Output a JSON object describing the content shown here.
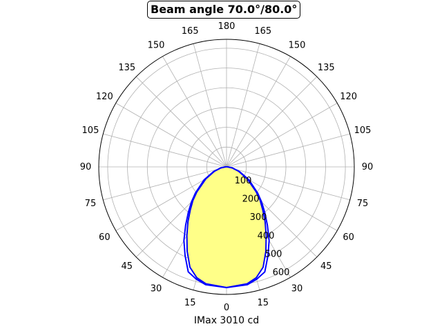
{
  "chart_data": {
    "type": "polar",
    "title": "Beam angle 70.0°/80.0°",
    "xlabel": "IMax 3010 cd",
    "angle_tick_labels": [
      "0",
      "15",
      "30",
      "45",
      "60",
      "75",
      "90",
      "105",
      "120",
      "135",
      "150",
      "165",
      "180"
    ],
    "radial_tick_labels": [
      "100",
      "200",
      "300",
      "400",
      "500",
      "600"
    ],
    "radial_ticks": [
      100,
      200,
      300,
      400,
      500,
      600
    ],
    "rlim": [
      0,
      645
    ],
    "grid": true,
    "angles_deg": [
      0,
      10,
      15,
      20,
      25,
      30,
      35,
      40,
      45,
      50,
      60,
      70,
      80,
      90
    ],
    "series": [
      {
        "values": [
          610,
          605,
          588,
          565,
          495,
          430,
          360,
          300,
          250,
          205,
          130,
          70,
          30,
          5
        ],
        "color": "#0000ff",
        "filled": false
      },
      {
        "values": [
          610,
          600,
          580,
          540,
          470,
          400,
          340,
          285,
          240,
          195,
          120,
          65,
          28,
          5
        ],
        "color": "#0000ff",
        "filled": true,
        "fill": "#ffff88"
      }
    ]
  }
}
